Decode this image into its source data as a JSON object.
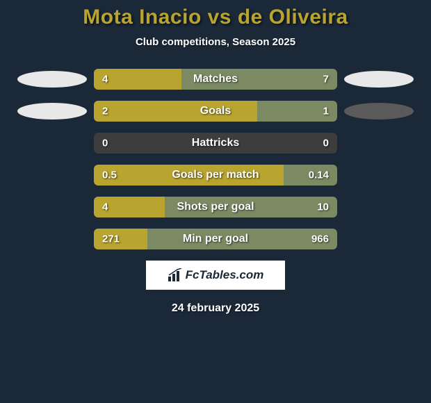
{
  "title": "Mota Inacio vs de Oliveira",
  "subtitle": "Club competitions, Season 2025",
  "date": "24 february 2025",
  "logo_text": "FcTables.com",
  "colors": {
    "background": "#1a2838",
    "title": "#b8a42e",
    "text": "#ffffff",
    "bar_left": "#b8a42e",
    "bar_right": "#7b8a63",
    "bar_neutral": "#3d3d3d",
    "oval_light": "#e8e8e8",
    "oval_grey": "#5a5a5a"
  },
  "stats": [
    {
      "label": "Matches",
      "left_value": "4",
      "right_value": "7",
      "left_pct": 36,
      "bar_right_color": "#7b8a63",
      "show_ovals": true,
      "oval_left_color": "#e8e8e8",
      "oval_right_color": "#e8e8e8"
    },
    {
      "label": "Goals",
      "left_value": "2",
      "right_value": "1",
      "left_pct": 67,
      "bar_right_color": "#7b8a63",
      "show_ovals": true,
      "oval_left_color": "#e8e8e8",
      "oval_right_color": "#5a5a5a"
    },
    {
      "label": "Hattricks",
      "left_value": "0",
      "right_value": "0",
      "left_pct": 0,
      "bar_right_color": "#3d3d3d",
      "show_ovals": false
    },
    {
      "label": "Goals per match",
      "left_value": "0.5",
      "right_value": "0.14",
      "left_pct": 78,
      "bar_right_color": "#7b8a63",
      "show_ovals": false
    },
    {
      "label": "Shots per goal",
      "left_value": "4",
      "right_value": "10",
      "left_pct": 29,
      "bar_right_color": "#7b8a63",
      "show_ovals": false
    },
    {
      "label": "Min per goal",
      "left_value": "271",
      "right_value": "966",
      "left_pct": 22,
      "bar_right_color": "#7b8a63",
      "show_ovals": false
    }
  ]
}
